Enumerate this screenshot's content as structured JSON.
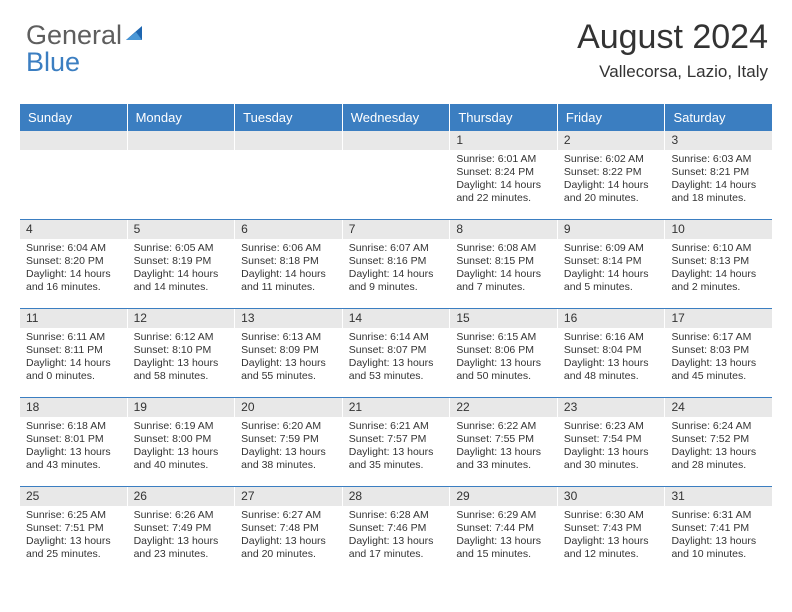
{
  "brand": {
    "text1": "General",
    "text2": "Blue",
    "text_color_gray": "#5e5e5e",
    "text_color_blue": "#3b7ec1",
    "icon_color": "#1e66b0"
  },
  "title": "August 2024",
  "subtitle": "Vallecorsa, Lazio, Italy",
  "colors": {
    "header_bg": "#3b7ec1",
    "header_text": "#ffffff",
    "daynum_bg": "#e8e8e8",
    "row_divider": "#3b7ec1",
    "body_text": "#343434"
  },
  "fonts": {
    "title_size": 34,
    "subtitle_size": 17,
    "dow_size": 13,
    "daynum_size": 12,
    "body_size": 10.5
  },
  "days_of_week": [
    "Sunday",
    "Monday",
    "Tuesday",
    "Wednesday",
    "Thursday",
    "Friday",
    "Saturday"
  ],
  "weeks": [
    [
      null,
      null,
      null,
      null,
      {
        "n": "1",
        "sunrise": "Sunrise: 6:01 AM",
        "sunset": "Sunset: 8:24 PM",
        "daylight": "Daylight: 14 hours and 22 minutes."
      },
      {
        "n": "2",
        "sunrise": "Sunrise: 6:02 AM",
        "sunset": "Sunset: 8:22 PM",
        "daylight": "Daylight: 14 hours and 20 minutes."
      },
      {
        "n": "3",
        "sunrise": "Sunrise: 6:03 AM",
        "sunset": "Sunset: 8:21 PM",
        "daylight": "Daylight: 14 hours and 18 minutes."
      }
    ],
    [
      {
        "n": "4",
        "sunrise": "Sunrise: 6:04 AM",
        "sunset": "Sunset: 8:20 PM",
        "daylight": "Daylight: 14 hours and 16 minutes."
      },
      {
        "n": "5",
        "sunrise": "Sunrise: 6:05 AM",
        "sunset": "Sunset: 8:19 PM",
        "daylight": "Daylight: 14 hours and 14 minutes."
      },
      {
        "n": "6",
        "sunrise": "Sunrise: 6:06 AM",
        "sunset": "Sunset: 8:18 PM",
        "daylight": "Daylight: 14 hours and 11 minutes."
      },
      {
        "n": "7",
        "sunrise": "Sunrise: 6:07 AM",
        "sunset": "Sunset: 8:16 PM",
        "daylight": "Daylight: 14 hours and 9 minutes."
      },
      {
        "n": "8",
        "sunrise": "Sunrise: 6:08 AM",
        "sunset": "Sunset: 8:15 PM",
        "daylight": "Daylight: 14 hours and 7 minutes."
      },
      {
        "n": "9",
        "sunrise": "Sunrise: 6:09 AM",
        "sunset": "Sunset: 8:14 PM",
        "daylight": "Daylight: 14 hours and 5 minutes."
      },
      {
        "n": "10",
        "sunrise": "Sunrise: 6:10 AM",
        "sunset": "Sunset: 8:13 PM",
        "daylight": "Daylight: 14 hours and 2 minutes."
      }
    ],
    [
      {
        "n": "11",
        "sunrise": "Sunrise: 6:11 AM",
        "sunset": "Sunset: 8:11 PM",
        "daylight": "Daylight: 14 hours and 0 minutes."
      },
      {
        "n": "12",
        "sunrise": "Sunrise: 6:12 AM",
        "sunset": "Sunset: 8:10 PM",
        "daylight": "Daylight: 13 hours and 58 minutes."
      },
      {
        "n": "13",
        "sunrise": "Sunrise: 6:13 AM",
        "sunset": "Sunset: 8:09 PM",
        "daylight": "Daylight: 13 hours and 55 minutes."
      },
      {
        "n": "14",
        "sunrise": "Sunrise: 6:14 AM",
        "sunset": "Sunset: 8:07 PM",
        "daylight": "Daylight: 13 hours and 53 minutes."
      },
      {
        "n": "15",
        "sunrise": "Sunrise: 6:15 AM",
        "sunset": "Sunset: 8:06 PM",
        "daylight": "Daylight: 13 hours and 50 minutes."
      },
      {
        "n": "16",
        "sunrise": "Sunrise: 6:16 AM",
        "sunset": "Sunset: 8:04 PM",
        "daylight": "Daylight: 13 hours and 48 minutes."
      },
      {
        "n": "17",
        "sunrise": "Sunrise: 6:17 AM",
        "sunset": "Sunset: 8:03 PM",
        "daylight": "Daylight: 13 hours and 45 minutes."
      }
    ],
    [
      {
        "n": "18",
        "sunrise": "Sunrise: 6:18 AM",
        "sunset": "Sunset: 8:01 PM",
        "daylight": "Daylight: 13 hours and 43 minutes."
      },
      {
        "n": "19",
        "sunrise": "Sunrise: 6:19 AM",
        "sunset": "Sunset: 8:00 PM",
        "daylight": "Daylight: 13 hours and 40 minutes."
      },
      {
        "n": "20",
        "sunrise": "Sunrise: 6:20 AM",
        "sunset": "Sunset: 7:59 PM",
        "daylight": "Daylight: 13 hours and 38 minutes."
      },
      {
        "n": "21",
        "sunrise": "Sunrise: 6:21 AM",
        "sunset": "Sunset: 7:57 PM",
        "daylight": "Daylight: 13 hours and 35 minutes."
      },
      {
        "n": "22",
        "sunrise": "Sunrise: 6:22 AM",
        "sunset": "Sunset: 7:55 PM",
        "daylight": "Daylight: 13 hours and 33 minutes."
      },
      {
        "n": "23",
        "sunrise": "Sunrise: 6:23 AM",
        "sunset": "Sunset: 7:54 PM",
        "daylight": "Daylight: 13 hours and 30 minutes."
      },
      {
        "n": "24",
        "sunrise": "Sunrise: 6:24 AM",
        "sunset": "Sunset: 7:52 PM",
        "daylight": "Daylight: 13 hours and 28 minutes."
      }
    ],
    [
      {
        "n": "25",
        "sunrise": "Sunrise: 6:25 AM",
        "sunset": "Sunset: 7:51 PM",
        "daylight": "Daylight: 13 hours and 25 minutes."
      },
      {
        "n": "26",
        "sunrise": "Sunrise: 6:26 AM",
        "sunset": "Sunset: 7:49 PM",
        "daylight": "Daylight: 13 hours and 23 minutes."
      },
      {
        "n": "27",
        "sunrise": "Sunrise: 6:27 AM",
        "sunset": "Sunset: 7:48 PM",
        "daylight": "Daylight: 13 hours and 20 minutes."
      },
      {
        "n": "28",
        "sunrise": "Sunrise: 6:28 AM",
        "sunset": "Sunset: 7:46 PM",
        "daylight": "Daylight: 13 hours and 17 minutes."
      },
      {
        "n": "29",
        "sunrise": "Sunrise: 6:29 AM",
        "sunset": "Sunset: 7:44 PM",
        "daylight": "Daylight: 13 hours and 15 minutes."
      },
      {
        "n": "30",
        "sunrise": "Sunrise: 6:30 AM",
        "sunset": "Sunset: 7:43 PM",
        "daylight": "Daylight: 13 hours and 12 minutes."
      },
      {
        "n": "31",
        "sunrise": "Sunrise: 6:31 AM",
        "sunset": "Sunset: 7:41 PM",
        "daylight": "Daylight: 13 hours and 10 minutes."
      }
    ]
  ]
}
